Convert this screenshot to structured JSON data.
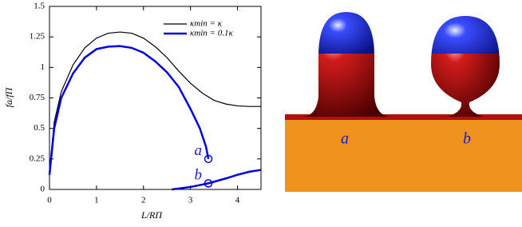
{
  "chart_data": {
    "type": "line",
    "xlabel": "L/RΠ",
    "ylabel": "fa/fΠ",
    "xlim": [
      0,
      4.5
    ],
    "ylim": [
      0,
      1.5
    ],
    "xticks": [
      0,
      1,
      2,
      3,
      4
    ],
    "yticks": [
      0,
      0.25,
      0.5,
      0.75,
      1,
      1.25,
      1.5
    ],
    "legend": "upper right",
    "series": [
      {
        "name": "κmin = κ",
        "color": "#000000",
        "width": 1.2,
        "x": [
          0,
          0.1,
          0.25,
          0.5,
          0.75,
          1,
          1.25,
          1.5,
          1.75,
          2,
          2.25,
          2.5,
          2.75,
          3,
          3.25,
          3.5,
          3.75,
          4,
          4.25,
          4.5
        ],
        "values": [
          0.15,
          0.55,
          0.8,
          1.02,
          1.16,
          1.24,
          1.28,
          1.29,
          1.28,
          1.24,
          1.17,
          1.08,
          0.97,
          0.87,
          0.79,
          0.73,
          0.7,
          0.685,
          0.68,
          0.68
        ]
      },
      {
        "name": "κmin = 0.1κ",
        "color": "#0000dd",
        "width": 2.5,
        "x": [
          0,
          0.1,
          0.25,
          0.5,
          0.75,
          1,
          1.25,
          1.5,
          1.75,
          2,
          2.25,
          2.5,
          2.75,
          3,
          3.2,
          3.33,
          3.38,
          3.38,
          2.6,
          3.0,
          3.38,
          3.75,
          4.0,
          4.25,
          4.5
        ],
        "values": [
          0.12,
          0.5,
          0.75,
          0.95,
          1.08,
          1.15,
          1.17,
          1.175,
          1.16,
          1.12,
          1.05,
          0.96,
          0.84,
          0.66,
          0.5,
          0.35,
          0.25,
          null,
          0,
          0.02,
          0.05,
          0.09,
          0.12,
          0.145,
          0.16
        ]
      }
    ],
    "annotations": [
      {
        "text": "a",
        "x": 3.38,
        "y": 0.25
      },
      {
        "text": "b",
        "x": 3.38,
        "y": 0.05
      }
    ]
  },
  "illustration": {
    "labels": [
      "a",
      "b"
    ]
  }
}
